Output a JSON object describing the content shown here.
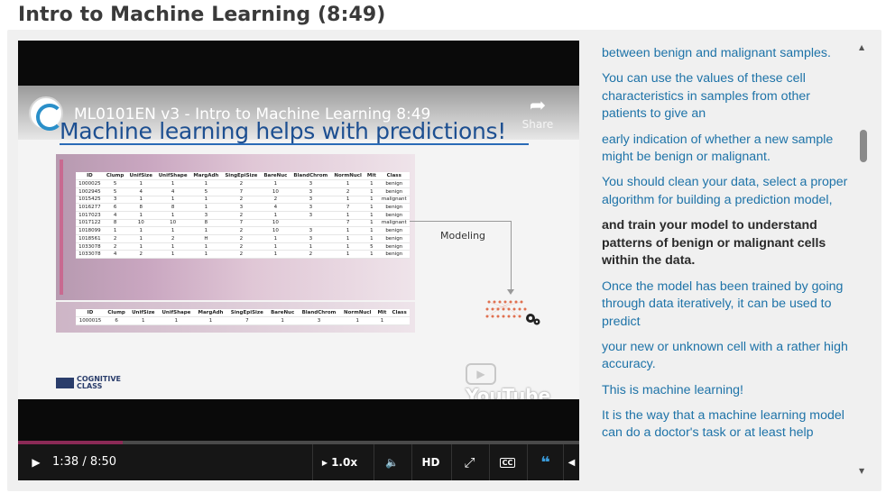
{
  "page": {
    "title": "Intro to Machine Learning (8:49)"
  },
  "player": {
    "video_title": "ML0101EN v3 - Intro to Machine Learning 8:49",
    "share_label": "Share",
    "youtube_watermark": "YouTube",
    "progress_fraction": 0.187,
    "time_display": "1:38 / 8:50",
    "speed_label": "1.0x",
    "hd_label": "HD",
    "cc_label": "CC",
    "colors": {
      "progress": "#8b2a56",
      "accent": "#3a9ad9"
    }
  },
  "slide": {
    "headline": "Machine learning helps with predictions!",
    "modeling_label": "Modeling",
    "logo_text_line1": "COGNITIVE",
    "logo_text_line2": "CLASS",
    "table_headers": [
      "ID",
      "Clump",
      "UnifSize",
      "UnifShape",
      "MargAdh",
      "SingEpiSize",
      "BareNuc",
      "BlandChrom",
      "NormNucl",
      "Mit",
      "Class"
    ],
    "table_rows": [
      [
        "1000025",
        "5",
        "1",
        "1",
        "1",
        "2",
        "1",
        "3",
        "1",
        "1",
        "benign"
      ],
      [
        "1002945",
        "5",
        "4",
        "4",
        "5",
        "7",
        "10",
        "3",
        "2",
        "1",
        "benign"
      ],
      [
        "1015425",
        "3",
        "1",
        "1",
        "1",
        "2",
        "2",
        "3",
        "1",
        "1",
        "malignant"
      ],
      [
        "1016277",
        "6",
        "8",
        "8",
        "1",
        "3",
        "4",
        "3",
        "7",
        "1",
        "benign"
      ],
      [
        "1017023",
        "4",
        "1",
        "1",
        "3",
        "2",
        "1",
        "3",
        "1",
        "1",
        "benign"
      ],
      [
        "1017122",
        "8",
        "10",
        "10",
        "8",
        "7",
        "10",
        "",
        "7",
        "1",
        "malignant"
      ],
      [
        "1018099",
        "1",
        "1",
        "1",
        "1",
        "2",
        "10",
        "3",
        "1",
        "1",
        "benign"
      ],
      [
        "1018561",
        "2",
        "1",
        "2",
        "H",
        "2",
        "1",
        "3",
        "1",
        "1",
        "benign"
      ],
      [
        "1033078",
        "2",
        "1",
        "1",
        "1",
        "2",
        "1",
        "1",
        "1",
        "5",
        "benign"
      ],
      [
        "1033078",
        "4",
        "2",
        "1",
        "1",
        "2",
        "1",
        "2",
        "1",
        "1",
        "benign"
      ]
    ],
    "new_row": [
      "1000015",
      "6",
      "1",
      "1",
      "1",
      "7",
      "1",
      "3",
      "1",
      "1",
      ""
    ]
  },
  "transcript": {
    "paragraphs": [
      {
        "text": "between benign and malignant samples.",
        "active": false
      },
      {
        "text": "You can use the values of these cell characteristics in samples from other patients to give an",
        "active": false
      },
      {
        "text": "early indication of whether a new sample might be benign or malignant.",
        "active": false
      },
      {
        "text": "You should clean your data, select a proper algorithm for building a prediction model,",
        "active": false
      },
      {
        "text": "and train your model to understand patterns of benign or malignant cells within the data.",
        "active": true
      },
      {
        "text": "Once the model has been trained by going through data iteratively, it can be used to predict",
        "active": false
      },
      {
        "text": "your new or unknown cell with a rather high accuracy.",
        "active": false
      },
      {
        "text": "This is machine learning!",
        "active": false
      },
      {
        "text": "It is the way that a machine learning model can do a doctor's task or at least help",
        "active": false
      }
    ]
  }
}
